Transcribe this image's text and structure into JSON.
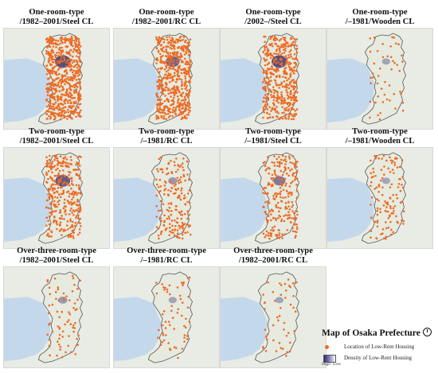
{
  "panels": [
    {
      "line1": "One-room-type",
      "line2": "/1982–2001/Steel CL",
      "density": 1.0,
      "hotspot": 1.0
    },
    {
      "line1": "One-room-type",
      "line2": "/1982–2001/RC CL",
      "density": 0.9,
      "hotspot": 0.8
    },
    {
      "line1": "One-room-type",
      "line2": "/2002–/Steel CL",
      "density": 0.75,
      "hotspot": 1.0
    },
    {
      "line1": "One-room-type",
      "line2": "/–1981/Wooden CL",
      "density": 0.08,
      "hotspot": 0.2
    },
    {
      "line1": "Two-room-type",
      "line2": "/1982–2001/Steel CL",
      "density": 0.55,
      "hotspot": 0.9
    },
    {
      "line1": "Two-room-type",
      "line2": "/–1981/RC CL",
      "density": 0.3,
      "hotspot": 0.3
    },
    {
      "line1": "Two-room-type",
      "line2": "/–1981/Steel CL",
      "density": 0.4,
      "hotspot": 0.6
    },
    {
      "line1": "Two-room-type",
      "line2": "/–1981/Wooden CL",
      "density": 0.2,
      "hotspot": 0.2
    },
    {
      "line1": "Over-three-room-type",
      "line2": "/1982–2001/Steel CL",
      "density": 0.12,
      "hotspot": 0.3
    },
    {
      "line1": "Over-three-room-type",
      "line2": "/–1981/RC CL",
      "density": 0.1,
      "hotspot": 0.2
    },
    {
      "line1": "Over-three-room-type",
      "line2": "/1982–2001/RC CL",
      "density": 0.08,
      "hotspot": 0.2
    }
  ],
  "legend": {
    "title": "Map of Osaka Prefecture",
    "location_label": "Location of Low-Rent Housing",
    "density_label": "Density of Low-Rent Housing",
    "high": "High",
    "low": "Low"
  },
  "colors": {
    "point": "#ee6a22",
    "density_high": "#2c2a70",
    "water": "#c4d8ec",
    "land": "#e6eadf"
  }
}
